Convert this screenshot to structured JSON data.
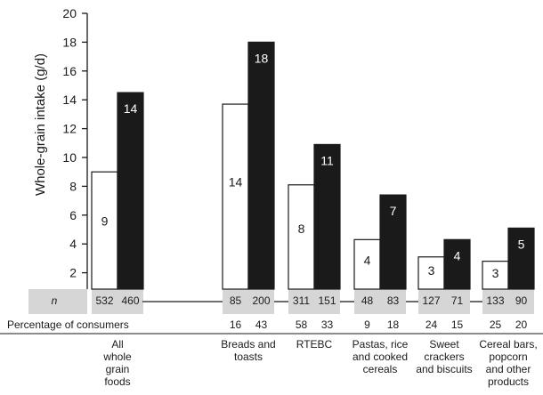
{
  "chart_data": {
    "type": "bar",
    "ylabel": "Whole-grain intake (g/d)",
    "ylim": [
      0,
      20
    ],
    "yticks": [
      2,
      4,
      6,
      8,
      10,
      12,
      14,
      16,
      18,
      20
    ],
    "n_label": "n",
    "pct_label": "Percentage of consumers",
    "categories": [
      {
        "lines": [
          "All",
          "whole",
          "grain",
          "foods"
        ]
      },
      {
        "lines": [
          "Breads and",
          "toasts"
        ]
      },
      {
        "lines": [
          "RTEBC"
        ]
      },
      {
        "lines": [
          "Pastas, rice",
          "and cooked",
          "cereals"
        ]
      },
      {
        "lines": [
          "Sweet",
          "crackers",
          "and biscuits"
        ]
      },
      {
        "lines": [
          "Cereal bars,",
          "popcorn",
          "and other",
          "products"
        ]
      }
    ],
    "series": [
      {
        "color": "#ffffff",
        "values": [
          9,
          14,
          8,
          4,
          3,
          3
        ],
        "plot_values": [
          9.0,
          13.7,
          8.1,
          4.3,
          3.1,
          2.8
        ],
        "n": [
          532,
          85,
          311,
          48,
          127,
          133
        ],
        "pct": [
          null,
          16,
          58,
          9,
          24,
          25
        ]
      },
      {
        "color": "#1a1a1a",
        "values": [
          14,
          18,
          11,
          7,
          4,
          5
        ],
        "plot_values": [
          14.5,
          18.0,
          10.9,
          7.4,
          4.3,
          5.1
        ],
        "n": [
          460,
          200,
          151,
          83,
          71,
          90
        ],
        "pct": [
          null,
          43,
          33,
          18,
          15,
          20
        ]
      }
    ],
    "colors": {
      "band": "#d6d6d6",
      "axis": "#1a1a1a"
    }
  }
}
